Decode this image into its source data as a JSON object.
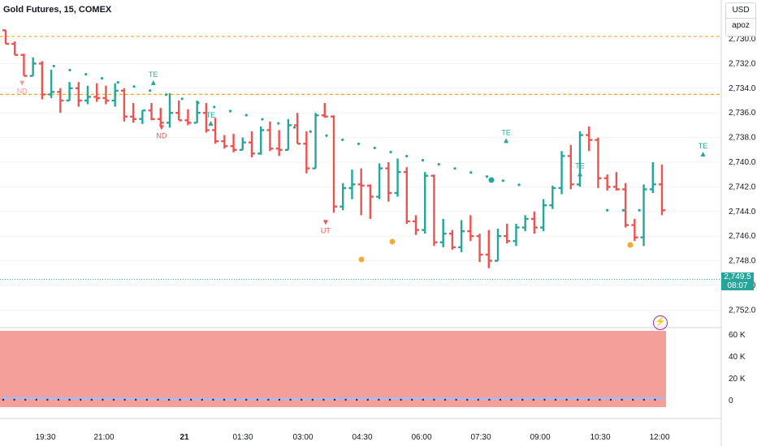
{
  "header": {
    "title": "Gold Futures, 15, COMEX"
  },
  "price_scale": {
    "currency": "USD",
    "mode": "apoz"
  },
  "current_price": {
    "price": "2,749.5",
    "countdown": "08:07"
  },
  "colors": {
    "bull": "#26a69a",
    "bear": "#ef5350",
    "dot": "#26a69a",
    "orange_line": "#f9a825",
    "volume_area": "#f4a099",
    "volume_line": "#b0b8e8",
    "grid": "#f0f3fa"
  },
  "indicator_icon": "lightning-icon",
  "chart_data": [
    {
      "type": "ohlc",
      "y_axis": {
        "ticks": [
          "2,730.0",
          "2,732.0",
          "2,734.0",
          "2,736.0",
          "2,738.0",
          "2,740.0",
          "2,742.0",
          "2,744.0",
          "2,746.0",
          "2,748.0",
          "2,750.0",
          "2,752.0"
        ],
        "tick_values": [
          2730,
          2732,
          2734,
          2736,
          2738,
          2740,
          2742,
          2744,
          2746,
          2748,
          2750,
          2752
        ],
        "ylim": [
          2728.6,
          2752.8
        ],
        "inverted": true
      },
      "x_axis": {
        "ticks": [
          "19:30",
          "21:00",
          "21",
          "01:30",
          "03:00",
          "04:30",
          "06:00",
          "07:30",
          "09:00",
          "10:30",
          "12:00"
        ],
        "xlim": [
          0,
          79
        ]
      },
      "horizontal_lines": [
        2729.8,
        2734.5
      ],
      "bars": [
        [
          2729.3,
          2729.3,
          2730.4,
          2730.4
        ],
        [
          2730.4,
          2730.2,
          2731.3,
          2731.3
        ],
        [
          2731.3,
          2731.2,
          2733.0,
          2733.0
        ],
        [
          2733.0,
          2731.5,
          2732.2,
          2732.0
        ],
        [
          2732.0,
          2731.8,
          2734.9,
          2734.5
        ],
        [
          2734.5,
          2732.5,
          2734.8,
          2734.3
        ],
        [
          2734.3,
          2734.0,
          2736.0,
          2735.0
        ],
        [
          2735.0,
          2733.5,
          2735.0,
          2734.0
        ],
        [
          2734.0,
          2733.5,
          2735.5,
          2735.0
        ],
        [
          2735.0,
          2733.8,
          2735.3,
          2734.7
        ],
        [
          2734.7,
          2733.6,
          2735.1,
          2734.8
        ],
        [
          2734.8,
          2733.8,
          2735.3,
          2735.0
        ],
        [
          2735.0,
          2733.6,
          2735.5,
          2734.2
        ],
        [
          2734.2,
          2734.0,
          2736.7,
          2736.3
        ],
        [
          2736.3,
          2735.2,
          2736.8,
          2736.5
        ],
        [
          2736.5,
          2735.8,
          2736.9,
          2735.8
        ],
        [
          2735.8,
          2735.2,
          2736.6,
          2736.5
        ],
        [
          2736.5,
          2735.6,
          2737.0,
          2736.8
        ],
        [
          2736.8,
          2734.4,
          2737.2,
          2736.0
        ],
        [
          2736.0,
          2735.0,
          2736.3,
          2736.6
        ],
        [
          2736.6,
          2735.7,
          2737.0,
          2736.8
        ],
        [
          2736.8,
          2735.0,
          2736.8,
          2736.0
        ],
        [
          2736.0,
          2735.2,
          2737.6,
          2737.4
        ],
        [
          2737.4,
          2736.4,
          2738.5,
          2738.3
        ],
        [
          2738.3,
          2737.8,
          2738.9,
          2738.7
        ],
        [
          2738.7,
          2737.7,
          2739.2,
          2739.0
        ],
        [
          2739.0,
          2738.0,
          2739.0,
          2738.4
        ],
        [
          2738.4,
          2737.5,
          2739.6,
          2739.3
        ],
        [
          2739.3,
          2737.1,
          2739.4,
          2737.4
        ],
        [
          2737.4,
          2736.7,
          2739.1,
          2738.9
        ],
        [
          2738.9,
          2737.4,
          2739.5,
          2739.0
        ],
        [
          2739.0,
          2736.5,
          2738.9,
          2737.0
        ],
        [
          2737.0,
          2736.0,
          2738.0,
          2738.5
        ],
        [
          2738.5,
          2737.5,
          2740.9,
          2740.5
        ],
        [
          2740.5,
          2736.0,
          2737.0,
          2736.2
        ],
        [
          2736.2,
          2735.2,
          2736.4,
          2736.3
        ],
        [
          2736.3,
          2736.2,
          2744.1,
          2743.6
        ],
        [
          2743.6,
          2741.7,
          2743.9,
          2742.1
        ],
        [
          2742.1,
          2740.6,
          2743.0,
          2741.8
        ],
        [
          2741.8,
          2740.5,
          2744.3,
          2741.9
        ],
        [
          2741.9,
          2741.8,
          2744.6,
          2742.8
        ],
        [
          2742.8,
          2740.1,
          2743.0,
          2740.5
        ],
        [
          2740.5,
          2740.0,
          2743.2,
          2742.5
        ],
        [
          2742.5,
          2739.7,
          2742.8,
          2740.8
        ],
        [
          2740.8,
          2740.4,
          2745.0,
          2744.8
        ],
        [
          2744.8,
          2744.3,
          2745.9,
          2745.5
        ],
        [
          2745.5,
          2740.8,
          2745.8,
          2741.1
        ],
        [
          2741.1,
          2741.0,
          2746.8,
          2746.5
        ],
        [
          2746.5,
          2744.6,
          2746.9,
          2745.8
        ],
        [
          2745.8,
          2745.5,
          2747.1,
          2746.9
        ],
        [
          2746.9,
          2744.7,
          2747.3,
          2745.6
        ],
        [
          2745.6,
          2744.3,
          2746.4,
          2746.0
        ],
        [
          2746.0,
          2745.8,
          2748.1,
          2747.5
        ],
        [
          2747.5,
          2745.5,
          2748.6,
          2748.0
        ],
        [
          2748.0,
          2745.4,
          2747.5,
          2746.0
        ],
        [
          2746.0,
          2745.0,
          2746.6,
          2746.4
        ],
        [
          2746.4,
          2745.0,
          2746.8,
          2745.3
        ],
        [
          2745.3,
          2744.3,
          2745.6,
          2744.6
        ],
        [
          2744.6,
          2744.0,
          2745.8,
          2745.3
        ],
        [
          2745.3,
          2743.0,
          2745.6,
          2743.5
        ],
        [
          2743.5,
          2741.9,
          2743.8,
          2742.1
        ],
        [
          2742.1,
          2739.1,
          2742.6,
          2739.5
        ],
        [
          2739.5,
          2738.6,
          2742.2,
          2741.8
        ],
        [
          2741.8,
          2737.5,
          2742.0,
          2737.8
        ],
        [
          2737.8,
          2737.1,
          2739.1,
          2738.2
        ],
        [
          2738.2,
          2738.0,
          2742.1,
          2741.3
        ],
        [
          2741.3,
          2741.0,
          2742.3,
          2742.0
        ],
        [
          2742.0,
          2740.8,
          2742.3,
          2742.2
        ],
        [
          2742.2,
          2741.7,
          2745.3,
          2745.1
        ],
        [
          2745.1,
          2744.6,
          2746.4,
          2746.1
        ],
        [
          2746.1,
          2741.8,
          2746.8,
          2742.2
        ],
        [
          2742.2,
          2740.0,
          2742.5,
          2741.8
        ],
        [
          2741.8,
          2740.2,
          2744.3,
          2743.9
        ]
      ],
      "markers": [
        {
          "label": "ND",
          "dir": "down",
          "color": "#ef9a9a",
          "bar": 2
        },
        {
          "label": "TE",
          "dir": "up",
          "color": "#26a69a",
          "bar": 18
        },
        {
          "label": "TE",
          "dir": "up",
          "color": "#26a69a",
          "bar": 25
        },
        {
          "label": "ND",
          "dir": "down",
          "color": "#ef5350",
          "bar": 19
        },
        {
          "label": "UT",
          "dir": "down",
          "color": "#ef5350",
          "bar": 39
        },
        {
          "label": "TE",
          "dir": "up",
          "color": "#26a69a",
          "bar": 61
        },
        {
          "label": "TE",
          "dir": "up",
          "color": "#26a69a",
          "bar": 70
        },
        {
          "label": "TE",
          "dir": "up",
          "color": "#26a69a",
          "bar": 85
        }
      ],
      "dots": [
        {
          "from_bar": 6,
          "from_price": 2732.2,
          "to_bar": 65,
          "to_price": 2742.0
        },
        {
          "from_bar": 75,
          "from_price": 2743.9,
          "to_bar": 80,
          "to_price": 2743.9
        },
        {
          "from_bar": 85,
          "from_price": 2743.9,
          "to_bar": 100,
          "to_price": 2745.0
        }
      ]
    },
    {
      "type": "area",
      "y_axis": {
        "ticks": [
          "60 K",
          "40 K",
          "20 K",
          "0"
        ],
        "tick_values": [
          60000,
          40000,
          20000,
          0
        ],
        "ylim": [
          0,
          70000
        ]
      },
      "series": [
        {
          "values": [
            3600,
            3200,
            2800,
            2600,
            2400,
            2200,
            2400,
            2600,
            2800,
            3000,
            2600,
            2800,
            3000,
            3200,
            3400
          ]
        }
      ]
    }
  ]
}
